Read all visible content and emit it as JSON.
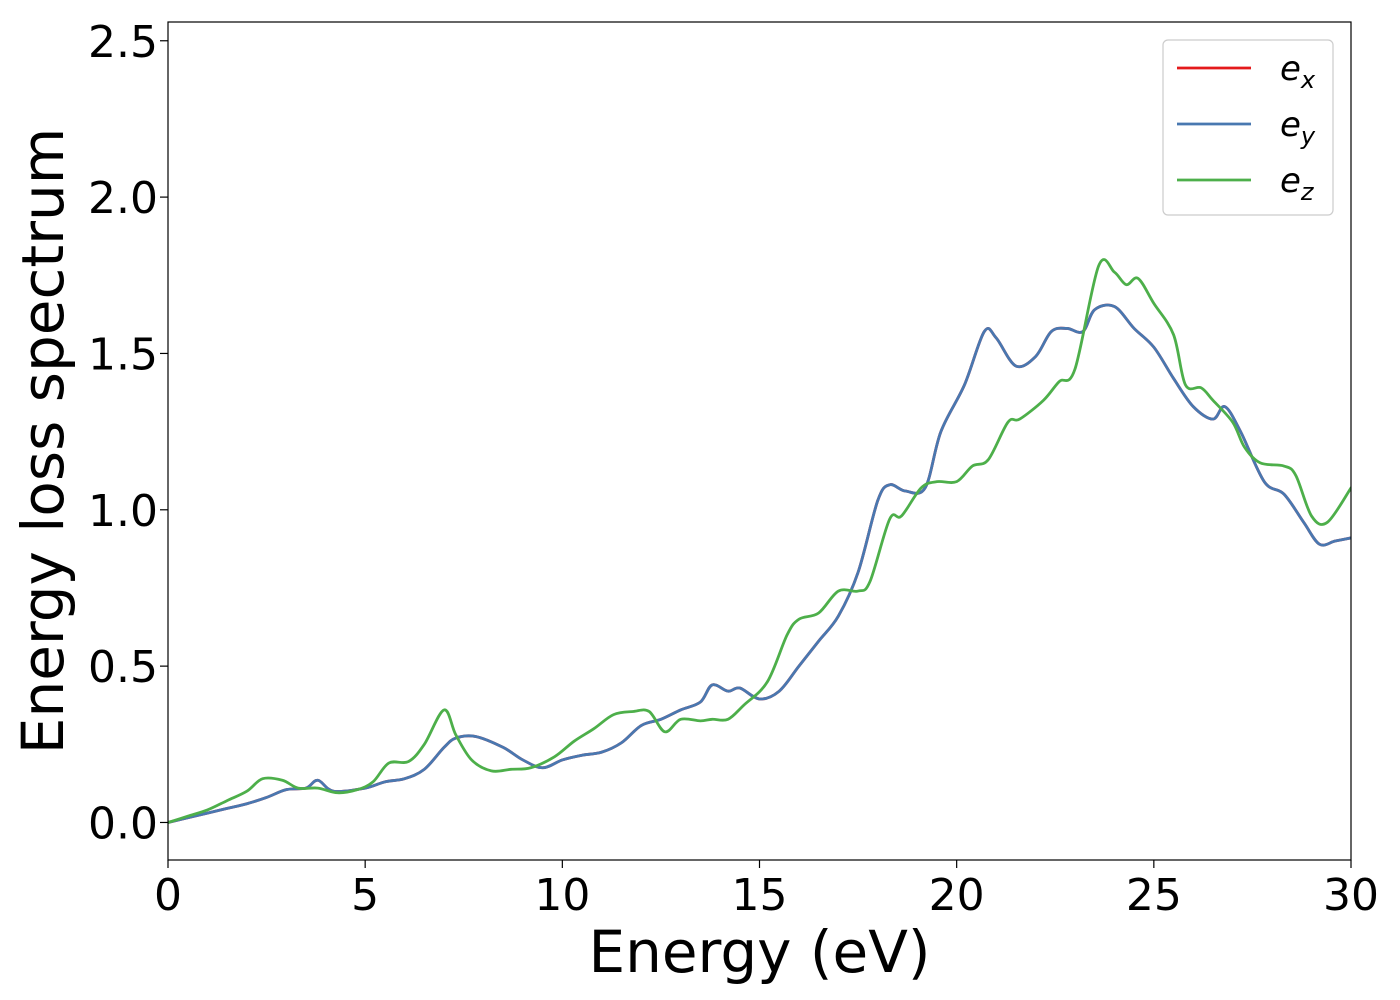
{
  "chart_data": {
    "type": "line",
    "xlabel": "Energy (eV)",
    "ylabel": "Energy loss spectrum",
    "xlim": [
      0,
      30
    ],
    "ylim": [
      -0.12,
      2.56
    ],
    "xticks": [
      0,
      5,
      10,
      15,
      20,
      25,
      30
    ],
    "yticks": [
      0.0,
      0.5,
      1.0,
      1.5,
      2.0,
      2.5
    ],
    "xtick_labels": [
      "0",
      "5",
      "10",
      "15",
      "20",
      "25",
      "30"
    ],
    "ytick_labels": [
      "0.0",
      "0.5",
      "1.0",
      "1.5",
      "2.0",
      "2.5"
    ],
    "grid": false,
    "legend_position": "top-right",
    "series": [
      {
        "name": "e_x",
        "label_base": "e",
        "label_sub": "x",
        "color": "#e41a1c",
        "points": [
          [
            0,
            0.0
          ],
          [
            0.5,
            0.015
          ],
          [
            1,
            0.03
          ],
          [
            1.5,
            0.045
          ],
          [
            2,
            0.06
          ],
          [
            2.5,
            0.08
          ],
          [
            3,
            0.105
          ],
          [
            3.5,
            0.11
          ],
          [
            3.8,
            0.135
          ],
          [
            4.2,
            0.1
          ],
          [
            5,
            0.11
          ],
          [
            5.5,
            0.13
          ],
          [
            6,
            0.14
          ],
          [
            6.5,
            0.17
          ],
          [
            7,
            0.24
          ],
          [
            7.3,
            0.27
          ],
          [
            7.8,
            0.275
          ],
          [
            8.5,
            0.24
          ],
          [
            9,
            0.2
          ],
          [
            9.5,
            0.175
          ],
          [
            10,
            0.2
          ],
          [
            10.5,
            0.215
          ],
          [
            11,
            0.225
          ],
          [
            11.5,
            0.255
          ],
          [
            12,
            0.31
          ],
          [
            12.5,
            0.33
          ],
          [
            13,
            0.36
          ],
          [
            13.5,
            0.385
          ],
          [
            13.8,
            0.44
          ],
          [
            14.2,
            0.42
          ],
          [
            14.5,
            0.43
          ],
          [
            15,
            0.395
          ],
          [
            15.5,
            0.42
          ],
          [
            16,
            0.5
          ],
          [
            16.5,
            0.58
          ],
          [
            17,
            0.66
          ],
          [
            17.5,
            0.8
          ],
          [
            18,
            1.03
          ],
          [
            18.3,
            1.08
          ],
          [
            18.7,
            1.06
          ],
          [
            19.2,
            1.07
          ],
          [
            19.6,
            1.25
          ],
          [
            20.2,
            1.4
          ],
          [
            20.7,
            1.57
          ],
          [
            21,
            1.55
          ],
          [
            21.5,
            1.46
          ],
          [
            22,
            1.49
          ],
          [
            22.4,
            1.57
          ],
          [
            22.8,
            1.58
          ],
          [
            23.2,
            1.57
          ],
          [
            23.5,
            1.64
          ],
          [
            24,
            1.65
          ],
          [
            24.5,
            1.58
          ],
          [
            25,
            1.52
          ],
          [
            25.5,
            1.42
          ],
          [
            26,
            1.33
          ],
          [
            26.5,
            1.29
          ],
          [
            26.8,
            1.33
          ],
          [
            27.2,
            1.25
          ],
          [
            27.8,
            1.09
          ],
          [
            28.3,
            1.05
          ],
          [
            28.8,
            0.96
          ],
          [
            29.2,
            0.89
          ],
          [
            29.6,
            0.9
          ],
          [
            30,
            0.91
          ]
        ]
      },
      {
        "name": "e_y",
        "label_base": "e",
        "label_sub": "y",
        "color": "#4978b0",
        "points": [
          [
            0,
            0.0
          ],
          [
            0.5,
            0.015
          ],
          [
            1,
            0.03
          ],
          [
            1.5,
            0.045
          ],
          [
            2,
            0.06
          ],
          [
            2.5,
            0.08
          ],
          [
            3,
            0.105
          ],
          [
            3.5,
            0.11
          ],
          [
            3.8,
            0.135
          ],
          [
            4.2,
            0.1
          ],
          [
            5,
            0.11
          ],
          [
            5.5,
            0.13
          ],
          [
            6,
            0.14
          ],
          [
            6.5,
            0.17
          ],
          [
            7,
            0.24
          ],
          [
            7.3,
            0.27
          ],
          [
            7.8,
            0.275
          ],
          [
            8.5,
            0.24
          ],
          [
            9,
            0.2
          ],
          [
            9.5,
            0.175
          ],
          [
            10,
            0.2
          ],
          [
            10.5,
            0.215
          ],
          [
            11,
            0.225
          ],
          [
            11.5,
            0.255
          ],
          [
            12,
            0.31
          ],
          [
            12.5,
            0.33
          ],
          [
            13,
            0.36
          ],
          [
            13.5,
            0.385
          ],
          [
            13.8,
            0.44
          ],
          [
            14.2,
            0.42
          ],
          [
            14.5,
            0.43
          ],
          [
            15,
            0.395
          ],
          [
            15.5,
            0.42
          ],
          [
            16,
            0.5
          ],
          [
            16.5,
            0.58
          ],
          [
            17,
            0.66
          ],
          [
            17.5,
            0.8
          ],
          [
            18,
            1.03
          ],
          [
            18.3,
            1.08
          ],
          [
            18.7,
            1.06
          ],
          [
            19.2,
            1.07
          ],
          [
            19.6,
            1.25
          ],
          [
            20.2,
            1.4
          ],
          [
            20.7,
            1.57
          ],
          [
            21,
            1.55
          ],
          [
            21.5,
            1.46
          ],
          [
            22,
            1.49
          ],
          [
            22.4,
            1.57
          ],
          [
            22.8,
            1.58
          ],
          [
            23.2,
            1.57
          ],
          [
            23.5,
            1.64
          ],
          [
            24,
            1.65
          ],
          [
            24.5,
            1.58
          ],
          [
            25,
            1.52
          ],
          [
            25.5,
            1.42
          ],
          [
            26,
            1.33
          ],
          [
            26.5,
            1.29
          ],
          [
            26.8,
            1.33
          ],
          [
            27.2,
            1.25
          ],
          [
            27.8,
            1.09
          ],
          [
            28.3,
            1.05
          ],
          [
            28.8,
            0.96
          ],
          [
            29.2,
            0.89
          ],
          [
            29.6,
            0.9
          ],
          [
            30,
            0.91
          ]
        ]
      },
      {
        "name": "e_z",
        "label_base": "e",
        "label_sub": "z",
        "color": "#4daf4a",
        "points": [
          [
            0,
            0.0
          ],
          [
            0.5,
            0.02
          ],
          [
            1,
            0.04
          ],
          [
            1.5,
            0.07
          ],
          [
            2,
            0.1
          ],
          [
            2.4,
            0.14
          ],
          [
            2.9,
            0.135
          ],
          [
            3.3,
            0.11
          ],
          [
            3.8,
            0.11
          ],
          [
            4.3,
            0.095
          ],
          [
            4.8,
            0.105
          ],
          [
            5.2,
            0.13
          ],
          [
            5.6,
            0.19
          ],
          [
            6.1,
            0.195
          ],
          [
            6.5,
            0.25
          ],
          [
            7,
            0.36
          ],
          [
            7.3,
            0.28
          ],
          [
            7.7,
            0.2
          ],
          [
            8.2,
            0.165
          ],
          [
            8.7,
            0.17
          ],
          [
            9.2,
            0.175
          ],
          [
            9.8,
            0.21
          ],
          [
            10.3,
            0.26
          ],
          [
            10.8,
            0.3
          ],
          [
            11.3,
            0.345
          ],
          [
            11.8,
            0.355
          ],
          [
            12.2,
            0.355
          ],
          [
            12.6,
            0.29
          ],
          [
            13,
            0.33
          ],
          [
            13.5,
            0.325
          ],
          [
            13.8,
            0.33
          ],
          [
            14.2,
            0.33
          ],
          [
            14.6,
            0.375
          ],
          [
            15.2,
            0.45
          ],
          [
            15.7,
            0.6
          ],
          [
            16,
            0.65
          ],
          [
            16.5,
            0.67
          ],
          [
            17,
            0.74
          ],
          [
            17.5,
            0.74
          ],
          [
            17.8,
            0.77
          ],
          [
            18.3,
            0.97
          ],
          [
            18.6,
            0.98
          ],
          [
            19.1,
            1.07
          ],
          [
            19.5,
            1.09
          ],
          [
            20,
            1.09
          ],
          [
            20.4,
            1.14
          ],
          [
            20.8,
            1.16
          ],
          [
            21.3,
            1.28
          ],
          [
            21.6,
            1.29
          ],
          [
            22.2,
            1.35
          ],
          [
            22.6,
            1.41
          ],
          [
            23,
            1.45
          ],
          [
            23.6,
            1.78
          ],
          [
            24,
            1.76
          ],
          [
            24.3,
            1.72
          ],
          [
            24.6,
            1.74
          ],
          [
            25,
            1.66
          ],
          [
            25.5,
            1.56
          ],
          [
            25.8,
            1.4
          ],
          [
            26.2,
            1.39
          ],
          [
            26.5,
            1.35
          ],
          [
            27,
            1.28
          ],
          [
            27.3,
            1.2
          ],
          [
            27.7,
            1.15
          ],
          [
            28.3,
            1.14
          ],
          [
            28.6,
            1.11
          ],
          [
            29,
            0.98
          ],
          [
            29.4,
            0.96
          ],
          [
            30,
            1.07
          ]
        ]
      }
    ]
  }
}
